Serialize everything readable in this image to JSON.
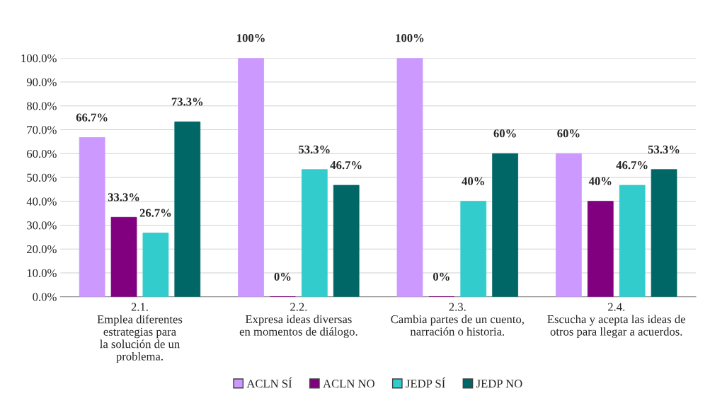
{
  "chart_data": {
    "type": "bar",
    "categories": [
      "2.1.\nEmplea diferentes\nestrategias para\nla solución de un\nproblema.",
      "2.2.\nExpresa ideas diversas\nen momentos de diálogo.",
      "2.3.\nCambia partes de un cuento,\nnarración o historia.",
      "2.4.\nEscucha y acepta las ideas de\notros para llegar a acuerdos."
    ],
    "series": [
      {
        "name": "ACLN SÍ",
        "color": "#cc99ff",
        "values": [
          66.7,
          100,
          100,
          60
        ],
        "value_labels": [
          "66.7%",
          "100%",
          "100%",
          "60%"
        ]
      },
      {
        "name": "ACLN NO",
        "color": "#800080",
        "values": [
          33.3,
          0,
          0,
          40
        ],
        "value_labels": [
          "33.3%",
          "0%",
          "0%",
          "40%"
        ]
      },
      {
        "name": "JEDP SÍ",
        "color": "#33cccc",
        "values": [
          26.7,
          53.3,
          40,
          46.7
        ],
        "value_labels": [
          "26.7%",
          "53.3%",
          "40%",
          "46.7%"
        ]
      },
      {
        "name": "JEDP NO",
        "color": "#006666",
        "values": [
          73.3,
          46.7,
          60,
          53.3
        ],
        "value_labels": [
          "73.3%",
          "46.7%",
          "60%",
          "53.3%"
        ]
      }
    ],
    "ylim": [
      0,
      100
    ],
    "yticks": [
      {
        "value": 0,
        "label": "0.0%"
      },
      {
        "value": 10,
        "label": "10.0%"
      },
      {
        "value": 20,
        "label": "20.0%"
      },
      {
        "value": 30,
        "label": "30.0%"
      },
      {
        "value": 40,
        "label": "40.0%"
      },
      {
        "value": 50,
        "label": "50.0%"
      },
      {
        "value": 60,
        "label": "60.0%"
      },
      {
        "value": 70,
        "label": "70.0%"
      },
      {
        "value": 80,
        "label": "80.0%"
      },
      {
        "value": 90,
        "label": "90.0%"
      },
      {
        "value": 100,
        "label": "100.0%"
      }
    ],
    "grid": "y",
    "legend": "bottom"
  }
}
